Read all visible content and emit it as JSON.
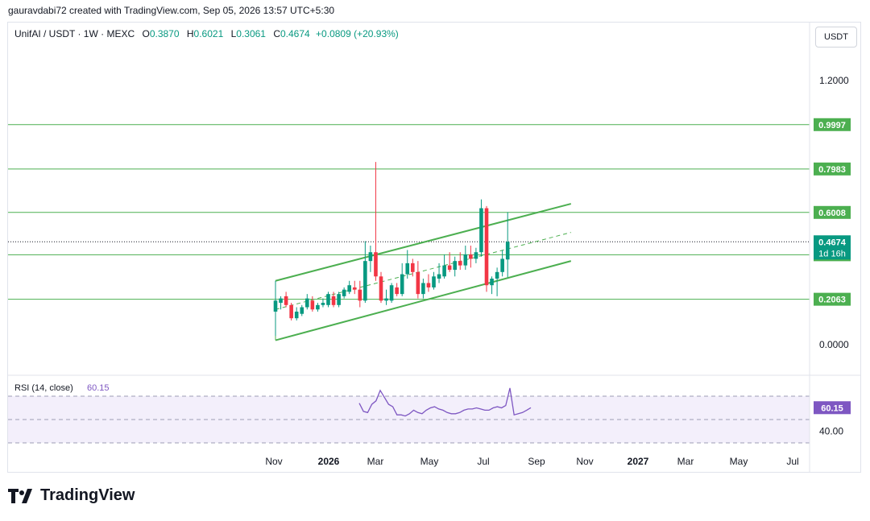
{
  "header": "gauravdabi72 created with TradingView.com, Sep 05, 2026 13:57 UTC+5:30",
  "legend": {
    "symbol": "UnifAI / USDT · 1W · MEXC",
    "open_label": "O",
    "open": "0.3870",
    "high_label": "H",
    "high": "0.6021",
    "low_label": "L",
    "low": "0.3061",
    "close_label": "C",
    "close": "0.4674",
    "change": "+0.0809 (+20.93%)"
  },
  "currency": "USDT",
  "footer_brand": "TradingView",
  "colors": {
    "up": "#089981",
    "down": "#f23645",
    "level": "#4caf50",
    "rsi": "#7e57c2"
  },
  "price_axis": {
    "ticks": [
      "1.2000",
      "0.0000"
    ]
  },
  "level_labels": [
    "0.9997",
    "0.7983",
    "0.6008",
    "0.4085",
    "0.2063"
  ],
  "current_price": {
    "value": "0.4674",
    "countdown": "1d 16h"
  },
  "rsi": {
    "label": "RSI (14, close)",
    "value": "60.15",
    "tick": "40.00"
  },
  "time_axis": [
    "Nov",
    "2026",
    "Mar",
    "May",
    "Jul",
    "Sep",
    "Nov",
    "2027",
    "Mar",
    "May",
    "Jul"
  ],
  "chart_data": [
    {
      "type": "candlestick",
      "title": "UnifAI / USDT · 1W · MEXC",
      "ylim": [
        -0.03,
        1.35
      ],
      "horizontal_levels": [
        0.9997,
        0.7983,
        0.6008,
        0.4085,
        0.2063
      ],
      "channel": {
        "lower": [
          [
            0,
            0.02
          ],
          [
            56,
            0.38
          ]
        ],
        "upper": [
          [
            0,
            0.29
          ],
          [
            56,
            0.64
          ]
        ],
        "mid": [
          [
            0,
            0.16
          ],
          [
            56,
            0.51
          ]
        ]
      },
      "candles": [
        {
          "o": 0.15,
          "h": 0.29,
          "l": 0.04,
          "c": 0.2
        },
        {
          "o": 0.19,
          "h": 0.22,
          "l": 0.16,
          "c": 0.21
        },
        {
          "o": 0.22,
          "h": 0.24,
          "l": 0.17,
          "c": 0.18
        },
        {
          "o": 0.18,
          "h": 0.19,
          "l": 0.11,
          "c": 0.12
        },
        {
          "o": 0.12,
          "h": 0.17,
          "l": 0.11,
          "c": 0.15
        },
        {
          "o": 0.14,
          "h": 0.18,
          "l": 0.13,
          "c": 0.17
        },
        {
          "o": 0.17,
          "h": 0.23,
          "l": 0.16,
          "c": 0.21
        },
        {
          "o": 0.2,
          "h": 0.22,
          "l": 0.15,
          "c": 0.16
        },
        {
          "o": 0.16,
          "h": 0.19,
          "l": 0.15,
          "c": 0.18
        },
        {
          "o": 0.18,
          "h": 0.21,
          "l": 0.17,
          "c": 0.19
        },
        {
          "o": 0.18,
          "h": 0.24,
          "l": 0.17,
          "c": 0.23
        },
        {
          "o": 0.22,
          "h": 0.24,
          "l": 0.17,
          "c": 0.18
        },
        {
          "o": 0.18,
          "h": 0.24,
          "l": 0.17,
          "c": 0.23
        },
        {
          "o": 0.22,
          "h": 0.26,
          "l": 0.21,
          "c": 0.25
        },
        {
          "o": 0.24,
          "h": 0.29,
          "l": 0.23,
          "c": 0.27
        },
        {
          "o": 0.26,
          "h": 0.29,
          "l": 0.23,
          "c": 0.25
        },
        {
          "o": 0.25,
          "h": 0.29,
          "l": 0.17,
          "c": 0.2
        },
        {
          "o": 0.2,
          "h": 0.47,
          "l": 0.19,
          "c": 0.38
        },
        {
          "o": 0.38,
          "h": 0.45,
          "l": 0.33,
          "c": 0.42
        },
        {
          "o": 0.42,
          "h": 0.83,
          "l": 0.29,
          "c": 0.31
        },
        {
          "o": 0.31,
          "h": 0.33,
          "l": 0.19,
          "c": 0.2
        },
        {
          "o": 0.2,
          "h": 0.25,
          "l": 0.18,
          "c": 0.21
        },
        {
          "o": 0.2,
          "h": 0.28,
          "l": 0.19,
          "c": 0.27
        },
        {
          "o": 0.26,
          "h": 0.28,
          "l": 0.22,
          "c": 0.23
        },
        {
          "o": 0.23,
          "h": 0.37,
          "l": 0.22,
          "c": 0.32
        },
        {
          "o": 0.32,
          "h": 0.43,
          "l": 0.3,
          "c": 0.37
        },
        {
          "o": 0.37,
          "h": 0.39,
          "l": 0.31,
          "c": 0.33
        },
        {
          "o": 0.33,
          "h": 0.38,
          "l": 0.21,
          "c": 0.23
        },
        {
          "o": 0.23,
          "h": 0.3,
          "l": 0.21,
          "c": 0.28
        },
        {
          "o": 0.28,
          "h": 0.32,
          "l": 0.24,
          "c": 0.26
        },
        {
          "o": 0.26,
          "h": 0.33,
          "l": 0.25,
          "c": 0.31
        },
        {
          "o": 0.3,
          "h": 0.37,
          "l": 0.28,
          "c": 0.32
        },
        {
          "o": 0.31,
          "h": 0.41,
          "l": 0.3,
          "c": 0.36
        },
        {
          "o": 0.36,
          "h": 0.42,
          "l": 0.33,
          "c": 0.34
        },
        {
          "o": 0.34,
          "h": 0.4,
          "l": 0.31,
          "c": 0.38
        },
        {
          "o": 0.38,
          "h": 0.42,
          "l": 0.34,
          "c": 0.36
        },
        {
          "o": 0.36,
          "h": 0.45,
          "l": 0.34,
          "c": 0.41
        },
        {
          "o": 0.41,
          "h": 0.45,
          "l": 0.35,
          "c": 0.39
        },
        {
          "o": 0.39,
          "h": 0.44,
          "l": 0.37,
          "c": 0.42
        },
        {
          "o": 0.42,
          "h": 0.66,
          "l": 0.4,
          "c": 0.62
        },
        {
          "o": 0.62,
          "h": 0.63,
          "l": 0.24,
          "c": 0.27
        },
        {
          "o": 0.27,
          "h": 0.31,
          "l": 0.23,
          "c": 0.3
        },
        {
          "o": 0.3,
          "h": 0.35,
          "l": 0.22,
          "c": 0.33
        },
        {
          "o": 0.33,
          "h": 0.43,
          "l": 0.31,
          "c": 0.39
        },
        {
          "o": 0.387,
          "h": 0.6021,
          "l": 0.3061,
          "c": 0.4674
        }
      ]
    },
    {
      "type": "line",
      "title": "RSI (14, close)",
      "ylim": [
        30,
        80
      ],
      "values": [
        64,
        57,
        56,
        63,
        66,
        75,
        69,
        63,
        61,
        54,
        54,
        53,
        55,
        58,
        56,
        55,
        58,
        60,
        61,
        59,
        58,
        56,
        55,
        55,
        56,
        58,
        59,
        59,
        60,
        59,
        58,
        58,
        60,
        61,
        60,
        62,
        77,
        54,
        55,
        56,
        58,
        60.15
      ]
    }
  ]
}
